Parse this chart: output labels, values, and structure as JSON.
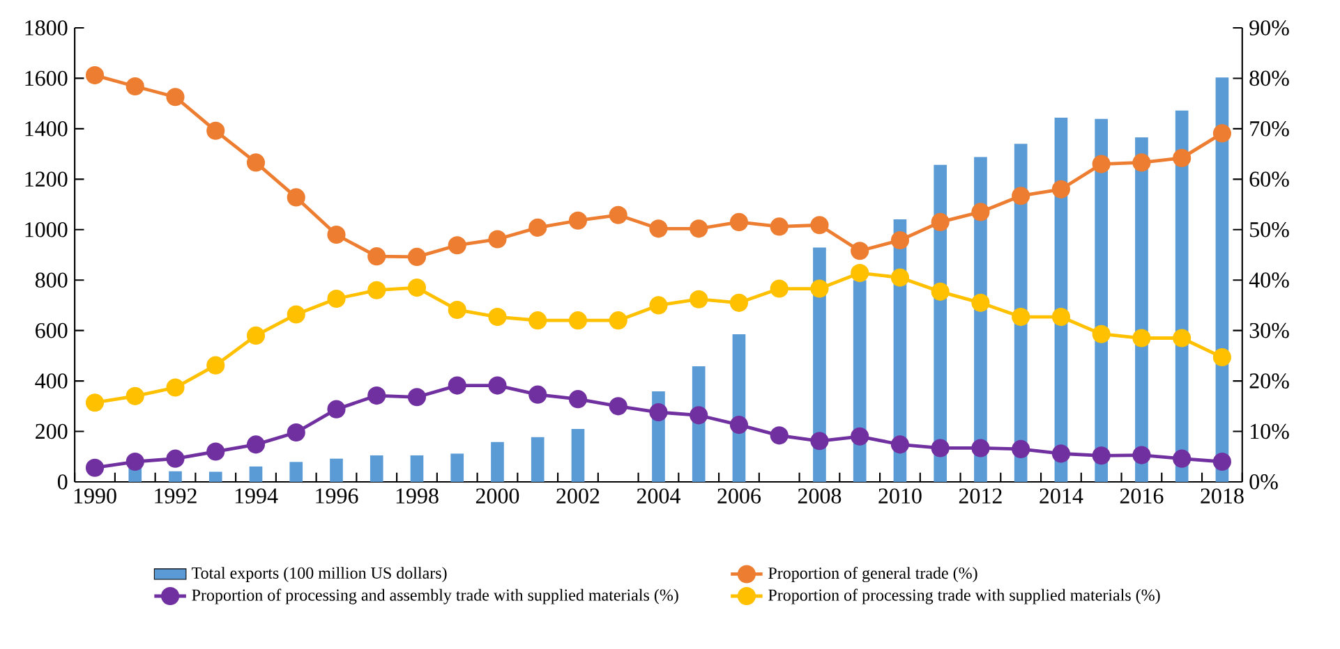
{
  "chart_data": {
    "type": "line",
    "categories": [
      "1990",
      null,
      "1992",
      null,
      "1994",
      null,
      "1996",
      null,
      "1998",
      null,
      "2000",
      null,
      "2002",
      null,
      "2004",
      null,
      "2006",
      null,
      "2008",
      null,
      "2010",
      null,
      "2012",
      null,
      "2014",
      null,
      "2016",
      null,
      "2018"
    ],
    "series": [
      {
        "name": "Total exports (100 million US dollars)",
        "type": "bar",
        "axis": "y",
        "color": "#5b9bd5",
        "values": [
          null,
          55,
          42,
          40,
          61,
          79,
          92,
          105,
          105,
          112,
          158,
          177,
          210,
          null,
          359,
          458,
          585,
          null,
          929,
          800,
          1041,
          1257,
          1288,
          1340,
          1444,
          1439,
          1366,
          1472,
          1603
        ]
      },
      {
        "name": "Proportion of general trade (%)",
        "axis": "y2",
        "color": "#ed7d31",
        "values": [
          80.6,
          78.4,
          76.3,
          69.6,
          63.3,
          56.4,
          49.0,
          44.7,
          44.6,
          46.9,
          48.1,
          50.4,
          51.8,
          52.9,
          50.2,
          50.2,
          51.5,
          50.6,
          50.9,
          45.8,
          47.9,
          51.5,
          53.5,
          56.7,
          58.0,
          63.0,
          63.3,
          64.2,
          69.1
        ]
      },
      {
        "name": "Proportion of processing and assembly trade with supplied materials (%)",
        "axis": "y2",
        "color": "#7030a0",
        "values": [
          2.8,
          4.0,
          4.6,
          6.0,
          7.4,
          9.8,
          14.4,
          17.1,
          16.8,
          19.1,
          19.1,
          17.3,
          16.4,
          15.0,
          13.8,
          13.2,
          11.3,
          9.2,
          8.1,
          9.0,
          7.4,
          6.7,
          6.7,
          6.5,
          5.6,
          5.2,
          5.3,
          4.6,
          4.0
        ]
      },
      {
        "name": "Proportion of processing trade with supplied materials (%)",
        "axis": "y2",
        "color": "#ffc000",
        "values": [
          15.7,
          17.0,
          18.7,
          23.1,
          29.0,
          33.2,
          36.3,
          38.0,
          38.5,
          34.1,
          32.7,
          32.0,
          32.0,
          32.0,
          35.0,
          36.2,
          35.5,
          38.3,
          38.3,
          41.4,
          40.5,
          37.7,
          35.5,
          32.7,
          32.7,
          29.3,
          28.5,
          28.5,
          24.7
        ]
      }
    ],
    "ylim": [
      0,
      1800
    ],
    "yticks": [
      0,
      200,
      400,
      600,
      800,
      1000,
      1200,
      1400,
      1600,
      1800
    ],
    "y2lim": [
      0,
      90
    ],
    "y2ticks": [
      {
        "value": 0,
        "label": "0%"
      },
      {
        "value": 10,
        "label": "10%"
      },
      {
        "value": 20,
        "label": "20%"
      },
      {
        "value": 30,
        "label": "30%"
      },
      {
        "value": 40,
        "label": "40%"
      },
      {
        "value": 50,
        "label": "50%"
      },
      {
        "value": 60,
        "label": "60%"
      },
      {
        "value": 70,
        "label": "70%"
      },
      {
        "value": 80,
        "label": "80%"
      },
      {
        "value": 90,
        "label": "90%"
      }
    ],
    "grid": false,
    "legend": "bottom",
    "marker": "circle",
    "line_style": "solid"
  }
}
